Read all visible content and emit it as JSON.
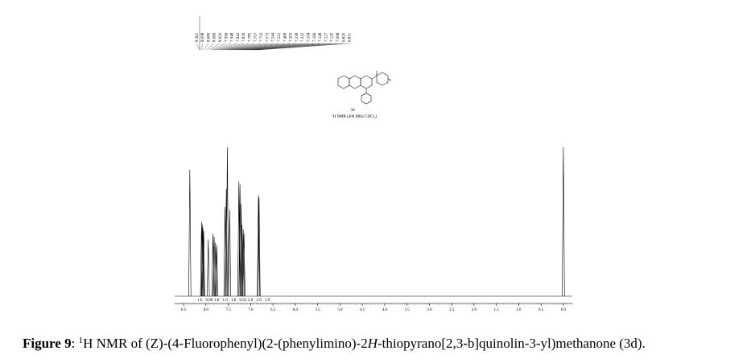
{
  "chart_data": {
    "type": "spectrum",
    "xlim": [
      8.7,
      -0.2
    ],
    "xticks": [
      {
        "value": 8.5,
        "label": "8.5"
      },
      {
        "value": 8,
        "label": "8.0"
      },
      {
        "value": 7.5,
        "label": "7.5"
      },
      {
        "value": 7,
        "label": "7.0"
      },
      {
        "value": 6.5,
        "label": "6.5"
      },
      {
        "value": 6,
        "label": "6.0"
      },
      {
        "value": 5.5,
        "label": "5.5"
      },
      {
        "value": 5,
        "label": "5.0"
      },
      {
        "value": 4.5,
        "label": "4.5"
      },
      {
        "value": 4,
        "label": "4.0"
      },
      {
        "value": 3.5,
        "label": "3.5"
      },
      {
        "value": 3,
        "label": "3.0"
      },
      {
        "value": 2.5,
        "label": "2.5"
      },
      {
        "value": 2,
        "label": "2.0"
      },
      {
        "value": 1.5,
        "label": "1.5"
      },
      {
        "value": 1,
        "label": "1.0"
      },
      {
        "value": 0.5,
        "label": "0.5"
      },
      {
        "value": 0,
        "label": "0.0"
      }
    ],
    "x": [
      8.361,
      8.098,
      8.08,
      8.069,
      8.05,
      7.948,
      7.843,
      7.816,
      7.785,
      7.757,
      7.573,
      7.544,
      7.521,
      7.469,
      7.263,
      7.238,
      7.212,
      7.194,
      7.166,
      7.148,
      6.825,
      6.811,
      0
    ],
    "values": [
      85,
      50,
      48,
      46,
      44,
      38,
      42,
      40,
      36,
      34,
      60,
      72,
      100,
      58,
      77,
      75,
      62,
      48,
      45,
      42,
      68,
      66,
      100
    ],
    "color": "#000000",
    "peak_labels": [
      "8.361",
      "8.098",
      "8.080",
      "8.069",
      "8.050",
      "7.996",
      "7.948",
      "7.843",
      "7.816",
      "7.785",
      "7.757",
      "7.733",
      "7.573",
      "7.544",
      "7.521",
      "7.469",
      "7.263",
      "7.238",
      "7.212",
      "7.194",
      "7.166",
      "7.148",
      "7.127",
      "7.125",
      "7.098",
      "6.825",
      "6.811"
    ],
    "integrals": [
      "1.6",
      "0.90",
      "1.8",
      "1.0",
      "1.8",
      "0.92",
      "2.0",
      "2.9",
      "1.9"
    ],
    "compound": "3d",
    "conditions": {
      "pre": "1",
      "text": "H NMR (300 MHz CDCl",
      "sub": "3",
      "post": ")"
    }
  },
  "caption": {
    "label": "Figure 9",
    "sep": ": ",
    "sup": "1",
    "text1": "H NMR of (Z)-(4-Fluorophenyl)(2-(phenylimino)-2",
    "italic": "H",
    "text2": "-thiopyrano[2,3-b]quinolin-3-yl)methanone (3d)."
  }
}
